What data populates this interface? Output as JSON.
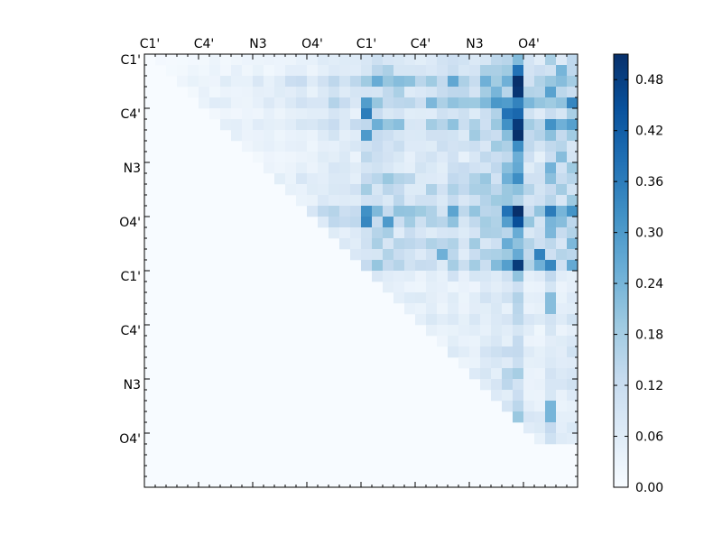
{
  "chart_data": {
    "type": "heatmap",
    "title": "",
    "xlabel": "",
    "ylabel": "",
    "n": 40,
    "x_tick_labels": [
      "C1'",
      "C4'",
      "N3",
      "O4'",
      "C1'",
      "C4'",
      "N3",
      "O4'"
    ],
    "x_tick_positions": [
      0,
      5,
      10,
      15,
      20,
      25,
      30,
      35
    ],
    "y_tick_labels": [
      "C1'",
      "C4'",
      "N3",
      "O4'",
      "C1'",
      "C4'",
      "N3",
      "O4'"
    ],
    "y_tick_positions": [
      0,
      5,
      10,
      15,
      20,
      25,
      30,
      35
    ],
    "colorbar": {
      "min": 0.0,
      "max": 0.51,
      "ticks": [
        0.0,
        0.06,
        0.12,
        0.18,
        0.24,
        0.3,
        0.36,
        0.42,
        0.48
      ],
      "tick_labels": [
        "0.00",
        "0.06",
        "0.12",
        "0.18",
        "0.24",
        "0.30",
        "0.36",
        "0.42",
        "0.48"
      ],
      "colormap": "Blues",
      "colors": [
        "#f7fbff",
        "#deebf7",
        "#c6dbef",
        "#9ecae1",
        "#6baed6",
        "#4292c6",
        "#2171b5",
        "#08519c",
        "#08306b"
      ]
    },
    "column_peaks": [
      0.02,
      0.04,
      0.03,
      0.03,
      0.04,
      0.05,
      0.05,
      0.05,
      0.06,
      0.05,
      0.06,
      0.06,
      0.07,
      0.09,
      0.1,
      0.09,
      0.11,
      0.12,
      0.13,
      0.12,
      0.26,
      0.23,
      0.25,
      0.2,
      0.17,
      0.16,
      0.19,
      0.17,
      0.23,
      0.17,
      0.22,
      0.24,
      0.28,
      0.35,
      0.51,
      0.2,
      0.18,
      0.34,
      0.22,
      0.27
    ],
    "row_scale": [
      0.4,
      0.5,
      0.9,
      0.6,
      0.9,
      0.5,
      0.8,
      0.6,
      0.5,
      0.4,
      0.5,
      0.6,
      0.6,
      0.5,
      0.9,
      0.8,
      0.5,
      0.6,
      0.5,
      0.7,
      0.3,
      0.2,
      0.3,
      0.2,
      0.3,
      0.2,
      0.2,
      0.3,
      0.2,
      0.3,
      0.3,
      0.2,
      0.2,
      0.3,
      0.4,
      0.3,
      0.0,
      0.0,
      0.0,
      0.0
    ],
    "highlight_cells": [
      {
        "row": 1,
        "col": 34,
        "value": 0.38
      },
      {
        "row": 3,
        "col": 34,
        "value": 0.5
      },
      {
        "row": 5,
        "col": 20,
        "value": 0.36
      },
      {
        "row": 5,
        "col": 33,
        "value": 0.38
      },
      {
        "row": 5,
        "col": 34,
        "value": 0.4
      },
      {
        "row": 7,
        "col": 34,
        "value": 0.51
      },
      {
        "row": 7,
        "col": 20,
        "value": 0.3
      },
      {
        "row": 14,
        "col": 34,
        "value": 0.51
      },
      {
        "row": 14,
        "col": 33,
        "value": 0.38
      },
      {
        "row": 14,
        "col": 20,
        "value": 0.32
      },
      {
        "row": 15,
        "col": 34,
        "value": 0.45
      },
      {
        "row": 15,
        "col": 20,
        "value": 0.34
      },
      {
        "row": 15,
        "col": 22,
        "value": 0.3
      },
      {
        "row": 16,
        "col": 34,
        "value": 0.26
      },
      {
        "row": 18,
        "col": 36,
        "value": 0.35
      },
      {
        "row": 19,
        "col": 36,
        "value": 0.25
      },
      {
        "row": 18,
        "col": 27,
        "value": 0.25
      },
      {
        "row": 22,
        "col": 37,
        "value": 0.22
      },
      {
        "row": 23,
        "col": 37,
        "value": 0.22
      },
      {
        "row": 32,
        "col": 37,
        "value": 0.24
      },
      {
        "row": 33,
        "col": 37,
        "value": 0.24
      },
      {
        "row": 1,
        "col": 38,
        "value": 0.24
      },
      {
        "row": 2,
        "col": 38,
        "value": 0.22
      },
      {
        "row": 9,
        "col": 38,
        "value": 0.22
      },
      {
        "row": 14,
        "col": 38,
        "value": 0.24
      },
      {
        "row": 15,
        "col": 38,
        "value": 0.22
      }
    ]
  }
}
